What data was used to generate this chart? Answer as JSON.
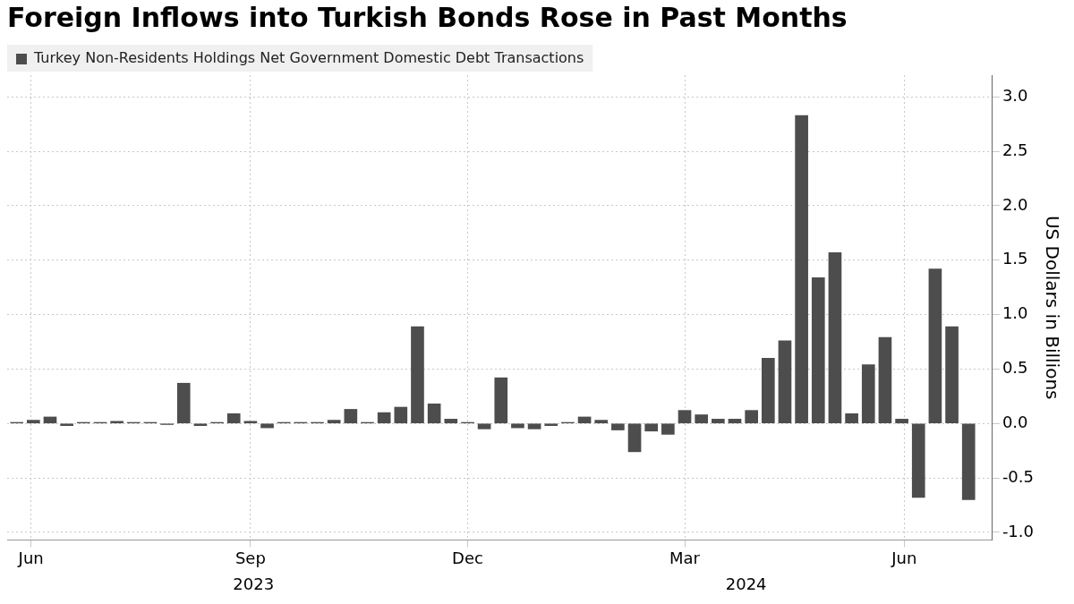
{
  "chart_data": {
    "type": "bar",
    "title": "Foreign Inflows into Turkish Bonds Rose in Past Months",
    "ylabel": "US Dollars in Billions",
    "x": [
      "2023-05-26",
      "2023-06-02",
      "2023-06-09",
      "2023-06-16",
      "2023-06-23",
      "2023-06-30",
      "2023-07-07",
      "2023-07-14",
      "2023-07-21",
      "2023-07-28",
      "2023-08-04",
      "2023-08-11",
      "2023-08-18",
      "2023-08-25",
      "2023-09-01",
      "2023-09-08",
      "2023-09-15",
      "2023-09-22",
      "2023-09-29",
      "2023-10-06",
      "2023-10-13",
      "2023-10-20",
      "2023-10-27",
      "2023-11-03",
      "2023-11-10",
      "2023-11-17",
      "2023-11-24",
      "2023-12-01",
      "2023-12-08",
      "2023-12-15",
      "2023-12-22",
      "2023-12-29",
      "2024-01-05",
      "2024-01-12",
      "2024-01-19",
      "2024-01-26",
      "2024-02-02",
      "2024-02-09",
      "2024-02-16",
      "2024-02-23",
      "2024-03-01",
      "2024-03-08",
      "2024-03-15",
      "2024-03-22",
      "2024-03-29",
      "2024-04-05",
      "2024-04-12",
      "2024-04-19",
      "2024-04-26",
      "2024-05-03",
      "2024-05-10",
      "2024-05-17",
      "2024-05-24",
      "2024-05-31",
      "2024-06-07",
      "2024-06-14",
      "2024-06-21",
      "2024-06-28"
    ],
    "series": [
      {
        "name": "Turkey Non-Residents Holdings Net Government Domestic Debt Transactions",
        "color": "#4d4d4d",
        "values": [
          0.01,
          0.03,
          0.06,
          -0.02,
          0.01,
          0.01,
          0.02,
          0.01,
          0.01,
          -0.01,
          0.37,
          -0.02,
          0.01,
          0.09,
          0.02,
          -0.04,
          0.01,
          0.01,
          0.01,
          0.03,
          0.13,
          0.01,
          0.1,
          0.15,
          0.89,
          0.18,
          0.04,
          0.01,
          -0.05,
          0.42,
          -0.04,
          -0.05,
          -0.02,
          0.01,
          0.06,
          0.03,
          -0.06,
          -0.26,
          -0.07,
          -0.1,
          0.12,
          0.08,
          0.04,
          0.04,
          0.12,
          0.6,
          0.76,
          2.83,
          1.34,
          1.57,
          0.09,
          0.54,
          0.79,
          0.04,
          -0.68,
          1.42,
          0.89,
          -0.7
        ]
      }
    ],
    "xlim": [
      "2023-05-22",
      "2024-07-08"
    ],
    "xticks": [
      {
        "value": "2023-06-01",
        "label": "Jun"
      },
      {
        "value": "2023-09-01",
        "label": "Sep"
      },
      {
        "value": "2023-12-01",
        "label": "Dec"
      },
      {
        "value": "2024-03-01",
        "label": "Mar"
      },
      {
        "value": "2024-06-01",
        "label": "Jun"
      }
    ],
    "ylim": [
      -1.07,
      3.2
    ],
    "yticks": [
      {
        "value": -1,
        "label": "-1.0"
      },
      {
        "value": -0.5,
        "label": "-0.5"
      },
      {
        "value": 0,
        "label": "0.0"
      },
      {
        "value": 0.5,
        "label": "0.5"
      },
      {
        "value": 1,
        "label": "1.0"
      },
      {
        "value": 1.5,
        "label": "1.5"
      },
      {
        "value": 2,
        "label": "2.0"
      },
      {
        "value": 2.5,
        "label": "2.5"
      },
      {
        "value": 3,
        "label": "3.0"
      }
    ],
    "annotations": [
      "2023",
      "2024"
    ],
    "grid": true,
    "legend": "top left"
  }
}
